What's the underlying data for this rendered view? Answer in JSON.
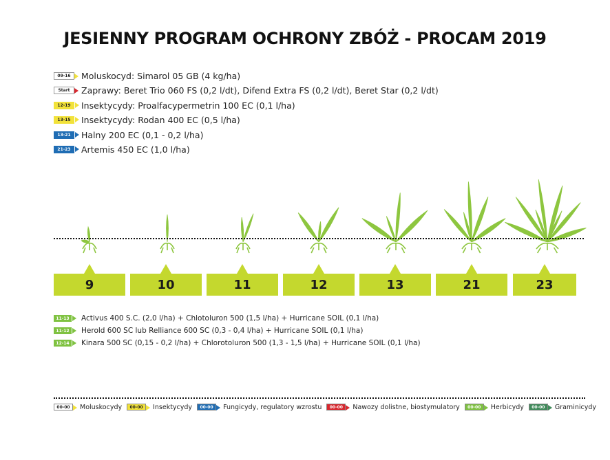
{
  "title": "JESIENNY PROGRAM OCHRONY ZBÓŻ - PROCAM 2019",
  "colors": {
    "moluskocydy": "#ffffff",
    "insektycydy": "#f2e23a",
    "fungicydy": "#1f6db4",
    "nawozy": "#d8272e",
    "herbicydy": "#7fc241",
    "graminicydy": "#3f8a5a",
    "stage_box": "#c4d82e",
    "plant": "#8dc63f"
  },
  "products": [
    {
      "tag": "09-16",
      "tag_color": "#ffffff",
      "tag_text_color": "#222222",
      "arrow": "#f2e23a",
      "text": "Moluskocyd: Simarol 05 GB (4 kg/ha)"
    },
    {
      "tag": "Start",
      "tag_color": "#ffffff",
      "tag_text_color": "#222222",
      "arrow": "#d8272e",
      "text": "Zaprawy: Beret Trio 060 FS (0,2 l/dt), Difend Extra FS (0,2 l/dt), Beret Star (0,2 l/dt)"
    },
    {
      "tag": "12-19",
      "tag_color": "#f2e23a",
      "tag_text_color": "#222222",
      "arrow": "#f2e23a",
      "text": "Insektycydy: Proalfacypermetrin 100 EC (0,1 l/ha)"
    },
    {
      "tag": "13-15",
      "tag_color": "#f2e23a",
      "tag_text_color": "#222222",
      "arrow": "#f2e23a",
      "text": "Insektycydy: Rodan 400 EC (0,5 l/ha)"
    },
    {
      "tag": "13-21",
      "tag_color": "#1f6db4",
      "tag_text_color": "#ffffff",
      "arrow": "#1f6db4",
      "text": "Halny 200 EC (0,1 - 0,2 l/ha)"
    },
    {
      "tag": "21-23",
      "tag_color": "#1f6db4",
      "tag_text_color": "#ffffff",
      "arrow": "#1f6db4",
      "text": "Artemis 450 EC (1,0 l/ha)"
    }
  ],
  "stages": [
    "9",
    "10",
    "11",
    "12",
    "13",
    "21",
    "23"
  ],
  "herbicides": [
    {
      "tag": "11-13",
      "text": "Activus 400 S.C. (2,0 l/ha) + Chlotoluron 500 (1,5 l/ha) + Hurricane SOIL (0,1 l/ha)"
    },
    {
      "tag": "11-12",
      "text": "Herold 600 SC lub Relliance 600 SC (0,3 - 0,4 l/ha) + Hurricane SOIL (0,1 l/ha)"
    },
    {
      "tag": "12-14",
      "text": "Kinara 500 SC (0,15 - 0,2 l/ha) + Chlorotoluron 500 (1,3 - 1,5 l/ha) + Hurricane SOIL (0,1 l/ha)"
    }
  ],
  "legend": [
    {
      "tag": "00-00",
      "color": "#ffffff",
      "text_color": "#222222",
      "label": "Moluskocydy"
    },
    {
      "tag": "00-00",
      "color": "#f2e23a",
      "text_color": "#222222",
      "label": "Insektycydy"
    },
    {
      "tag": "00-00",
      "color": "#1f6db4",
      "text_color": "#ffffff",
      "label": "Fungicydy, regulatory wzrostu"
    },
    {
      "tag": "00-00",
      "color": "#d8272e",
      "text_color": "#ffffff",
      "label": "Nawozy dolistne, biostymulatory"
    },
    {
      "tag": "00-00",
      "color": "#7fc241",
      "text_color": "#ffffff",
      "label": "Herbicydy"
    },
    {
      "tag": "00-00",
      "color": "#3f8a5a",
      "text_color": "#ffffff",
      "label": "Graminicydy"
    }
  ]
}
